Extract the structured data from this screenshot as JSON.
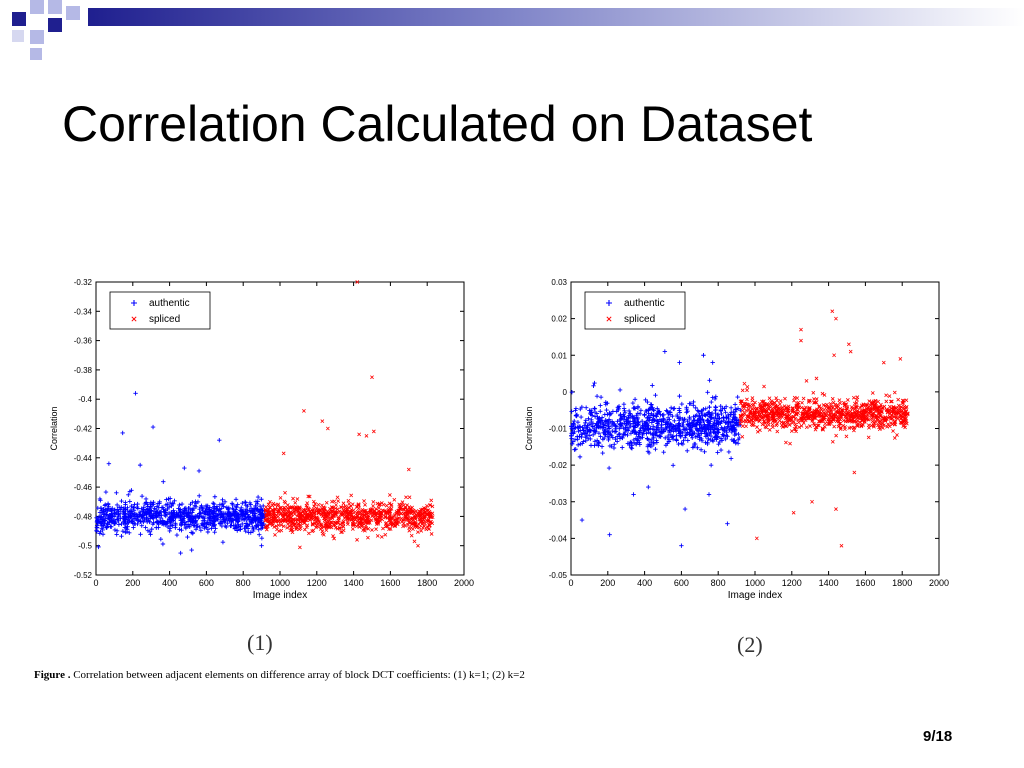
{
  "slide": {
    "title": "Correlation Calculated on Dataset",
    "caption_bold": "Figure .",
    "caption_text": " Correlation between adjacent elements on difference array of block DCT coefficients: (1) k=1; (2) k=2",
    "page_number": "9/18",
    "deco_color": "#1f1f8f",
    "deco_light": "#b5b9e6"
  },
  "colors": {
    "authentic": "#0000ff",
    "spliced": "#ff0000"
  },
  "chart_data": [
    {
      "type": "scatter",
      "panel_label": "(1)",
      "xlabel": "Image index",
      "ylabel": "Correlation",
      "xlim": [
        0,
        2000
      ],
      "ylim": [
        -0.52,
        -0.32
      ],
      "xticks": [
        "0",
        "200",
        "400",
        "600",
        "800",
        "1000",
        "1200",
        "1400",
        "1600",
        "1800",
        "2000"
      ],
      "yticks": [
        "-0.32",
        "-0.34",
        "-0.36",
        "-0.38",
        "-0.4",
        "-0.42",
        "-0.44",
        "-0.46",
        "-0.48",
        "-0.5",
        "-0.52"
      ],
      "legend_position": "top-left",
      "grid": false,
      "series": [
        {
          "name": "authentic",
          "marker": "+",
          "x_range": [
            1,
            920
          ],
          "band": [
            -0.495,
            -0.465
          ],
          "count": 920,
          "outliers": [
            [
              215,
              -0.396
            ],
            [
              145,
              -0.423
            ],
            [
              310,
              -0.419
            ],
            [
              670,
              -0.428
            ],
            [
              480,
              -0.447
            ],
            [
              70,
              -0.444
            ],
            [
              240,
              -0.445
            ],
            [
              560,
              -0.449
            ],
            [
              900,
              -0.5
            ],
            [
              460,
              -0.505
            ],
            [
              520,
              -0.503
            ]
          ]
        },
        {
          "name": "spliced",
          "marker": "x",
          "x_range": [
            920,
            1830
          ],
          "band": [
            -0.495,
            -0.465
          ],
          "count": 910,
          "outliers": [
            [
              1420,
              -0.32
            ],
            [
              1500,
              -0.385
            ],
            [
              1130,
              -0.408
            ],
            [
              1230,
              -0.415
            ],
            [
              1260,
              -0.42
            ],
            [
              1430,
              -0.424
            ],
            [
              1470,
              -0.425
            ],
            [
              1510,
              -0.422
            ],
            [
              1020,
              -0.437
            ],
            [
              1700,
              -0.448
            ],
            [
              1750,
              -0.5
            ]
          ]
        }
      ]
    },
    {
      "type": "scatter",
      "panel_label": "(2)",
      "xlabel": "Image index",
      "ylabel": "Correlation",
      "xlim": [
        0,
        2000
      ],
      "ylim": [
        -0.05,
        0.03
      ],
      "xticks": [
        "0",
        "200",
        "400",
        "600",
        "800",
        "1000",
        "1200",
        "1400",
        "1600",
        "1800",
        "2000"
      ],
      "yticks": [
        "0.03",
        "0.02",
        "0.01",
        "0",
        "-0.01",
        "-0.02",
        "-0.03",
        "-0.04",
        "-0.05"
      ],
      "legend_position": "top-left",
      "grid": false,
      "series": [
        {
          "name": "authentic",
          "marker": "+",
          "x_range": [
            1,
            920
          ],
          "band": [
            -0.018,
            0.0
          ],
          "count": 920,
          "outliers": [
            [
              510,
              0.011
            ],
            [
              590,
              0.008
            ],
            [
              770,
              0.008
            ],
            [
              720,
              0.01
            ],
            [
              60,
              -0.035
            ],
            [
              210,
              -0.039
            ],
            [
              600,
              -0.042
            ],
            [
              850,
              -0.036
            ],
            [
              750,
              -0.028
            ],
            [
              340,
              -0.028
            ],
            [
              420,
              -0.026
            ],
            [
              620,
              -0.032
            ]
          ]
        },
        {
          "name": "spliced",
          "marker": "x",
          "x_range": [
            920,
            1830
          ],
          "band": [
            -0.012,
            0.0
          ],
          "count": 910,
          "outliers": [
            [
              1420,
              0.022
            ],
            [
              1440,
              0.02
            ],
            [
              1250,
              0.017
            ],
            [
              1250,
              0.014
            ],
            [
              1510,
              0.013
            ],
            [
              1520,
              0.011
            ],
            [
              1430,
              0.01
            ],
            [
              1700,
              0.008
            ],
            [
              1790,
              0.009
            ],
            [
              1280,
              0.003
            ],
            [
              1010,
              -0.04
            ],
            [
              1470,
              -0.042
            ],
            [
              1440,
              -0.032
            ],
            [
              1210,
              -0.033
            ],
            [
              1310,
              -0.03
            ],
            [
              1540,
              -0.022
            ]
          ]
        }
      ]
    }
  ]
}
